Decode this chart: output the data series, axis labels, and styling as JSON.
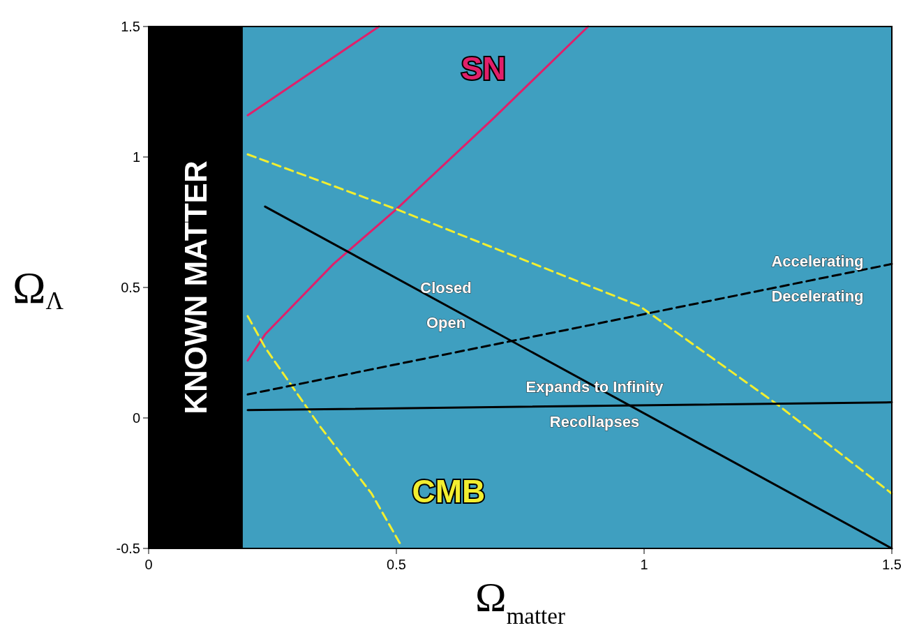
{
  "chart_data": {
    "type": "line",
    "xlabel": "Ω$_{matter}$",
    "ylabel": "Ω$_{Λ}$",
    "xlim": [
      0,
      1.5
    ],
    "ylim": [
      -0.5,
      1.5
    ],
    "xticks": [
      0,
      0.5,
      1,
      1.5
    ],
    "yticks": [
      -0.5,
      0,
      0.5,
      1,
      1.5
    ],
    "grid": false,
    "bands": [
      {
        "axis": "x",
        "from": 0,
        "to": 0.19,
        "label": "KNOWN MATTER",
        "color": "#000000"
      }
    ],
    "series": [
      {
        "color": "#e0206a",
        "x": [
          0.2,
          0.465
        ],
        "values": [
          1.16,
          1.5
        ],
        "line_style": "solid"
      },
      {
        "name": "SN",
        "color": "#e0206a",
        "x": [
          0.2,
          0.235,
          0.373,
          0.5,
          0.697,
          0.887
        ],
        "values": [
          0.22,
          0.32,
          0.59,
          0.8,
          1.15,
          1.5
        ],
        "line_style": "solid"
      },
      {
        "color": "#f2ee30",
        "x": [
          0.2,
          0.5,
          0.99,
          1.27,
          1.5
        ],
        "values": [
          1.01,
          0.8,
          0.43,
          0.05,
          -0.29
        ],
        "line_style": "dashed"
      },
      {
        "name": "CMB",
        "color": "#f2ee30",
        "x": [
          0.2,
          0.235,
          0.345,
          0.45,
          0.507
        ],
        "values": [
          0.39,
          0.27,
          -0.03,
          -0.29,
          -0.48
        ],
        "line_style": "dashed"
      },
      {
        "color": "#000000",
        "x": [
          0.235,
          1.5
        ],
        "values": [
          0.81,
          -0.5
        ],
        "line_style": "solid"
      },
      {
        "color": "#000000",
        "x": [
          0.2,
          1.5
        ],
        "values": [
          0.03,
          0.06
        ],
        "line_style": "solid"
      },
      {
        "color": "#000000",
        "x": [
          0.2,
          1.5
        ],
        "values": [
          0.09,
          0.59
        ],
        "line_style": "dashed"
      }
    ],
    "annotations": [
      {
        "text": "Closed",
        "x": 0.6,
        "y": 0.43
      },
      {
        "text": "Open",
        "x": 0.6,
        "y": 0.43
      },
      {
        "text": "Accelerating",
        "x": 1.35,
        "y": 0.53
      },
      {
        "text": "Decelerating",
        "x": 1.35,
        "y": 0.53
      },
      {
        "text": "Expands to Infinity",
        "x": 0.9,
        "y": 0.05
      },
      {
        "text": "Recollapses",
        "x": 0.9,
        "y": 0.05
      }
    ]
  }
}
